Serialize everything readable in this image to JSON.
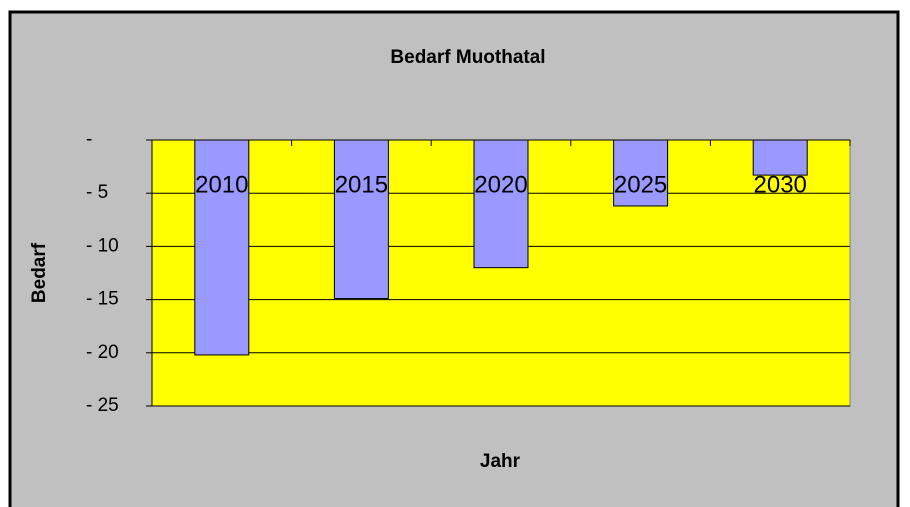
{
  "chart_data": {
    "type": "bar",
    "title": "Bedarf Muothatal",
    "xlabel": "Jahr",
    "ylabel": "Bedarf",
    "categories": [
      "2010",
      "2015",
      "2020",
      "2025",
      "2030"
    ],
    "values": [
      -20.2,
      -14.9,
      -12.0,
      -6.2,
      -3.3
    ],
    "color": "#9999ff",
    "ylim": [
      -25,
      0
    ],
    "yticks": [
      {
        "value": 0,
        "label": "-"
      },
      {
        "value": -5,
        "label": "- 5"
      },
      {
        "value": -10,
        "label": "- 10"
      },
      {
        "value": -15,
        "label": "- 15"
      },
      {
        "value": -20,
        "label": "- 20"
      },
      {
        "value": -25,
        "label": "- 25"
      }
    ],
    "grid": true
  }
}
